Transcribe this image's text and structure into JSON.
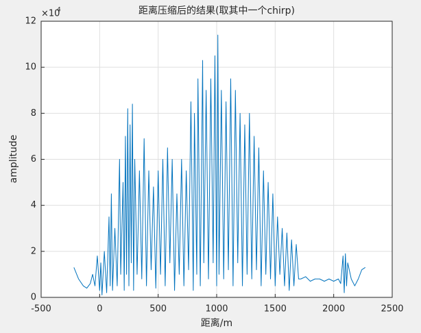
{
  "chart_data": {
    "type": "line",
    "title": "距离压缩后的结果(取其中一个chirp)",
    "x_label": "距离/m",
    "y_label": "amplitude",
    "y_multiplier": "×10",
    "y_multiplier_exponent": "4",
    "color": "#0072bd",
    "grid": true,
    "xlim": [
      -500,
      2500
    ],
    "xticks": [
      -500,
      0,
      500,
      1000,
      1500,
      2000,
      2500
    ],
    "ylim": [
      0,
      12
    ],
    "yticks": [
      0,
      2,
      4,
      6,
      8,
      10,
      12
    ],
    "x": [
      -220,
      -180,
      -140,
      -110,
      -80,
      -60,
      -40,
      -20,
      0,
      10,
      20,
      40,
      60,
      80,
      90,
      100,
      110,
      130,
      150,
      170,
      180,
      200,
      210,
      220,
      230,
      240,
      250,
      260,
      270,
      280,
      290,
      300,
      320,
      340,
      360,
      380,
      400,
      420,
      440,
      460,
      480,
      500,
      520,
      540,
      560,
      580,
      600,
      620,
      640,
      660,
      680,
      700,
      720,
      740,
      760,
      780,
      800,
      810,
      830,
      840,
      860,
      880,
      890,
      910,
      930,
      950,
      970,
      985,
      1000,
      1010,
      1020,
      1040,
      1060,
      1080,
      1100,
      1120,
      1140,
      1160,
      1180,
      1200,
      1220,
      1240,
      1260,
      1280,
      1300,
      1320,
      1340,
      1360,
      1380,
      1400,
      1420,
      1440,
      1460,
      1480,
      1500,
      1520,
      1540,
      1560,
      1580,
      1600,
      1620,
      1640,
      1660,
      1680,
      1700,
      1720,
      1760,
      1800,
      1840,
      1880,
      1920,
      1960,
      2000,
      2040,
      2060,
      2080,
      2090,
      2100,
      2110,
      2120,
      2150,
      2180,
      2210,
      2240,
      2270
    ],
    "values": [
      1.3,
      0.8,
      0.5,
      0.4,
      0.6,
      1.0,
      0.5,
      1.8,
      0.3,
      1.5,
      0.1,
      2.0,
      0.2,
      3.5,
      0.5,
      4.5,
      0.3,
      3.0,
      0.5,
      6.0,
      1.0,
      5.0,
      0.3,
      7.0,
      1.0,
      8.2,
      0.5,
      7.5,
      1.5,
      8.4,
      0.3,
      6.0,
      1.0,
      5.5,
      0.8,
      6.9,
      0.5,
      5.5,
      1.2,
      4.8,
      0.4,
      5.5,
      1.0,
      6.0,
      0.5,
      6.5,
      1.5,
      6.0,
      0.3,
      4.5,
      1.0,
      6.0,
      0.5,
      5.5,
      1.2,
      8.5,
      0.3,
      8.0,
      1.0,
      9.5,
      0.5,
      10.3,
      1.5,
      9.0,
      0.8,
      9.5,
      1.5,
      10.5,
      0.5,
      11.4,
      1.0,
      9.0,
      0.8,
      8.5,
      1.2,
      9.5,
      0.5,
      9.0,
      1.5,
      8.0,
      0.5,
      7.5,
      1.0,
      8.0,
      0.8,
      7.0,
      1.2,
      6.5,
      0.5,
      5.5,
      1.0,
      5.0,
      0.8,
      4.5,
      0.5,
      3.5,
      1.0,
      3.0,
      0.5,
      2.8,
      0.3,
      2.5,
      0.5,
      2.3,
      0.8,
      0.8,
      0.9,
      0.7,
      0.8,
      0.8,
      0.7,
      0.8,
      0.7,
      0.8,
      0.6,
      1.8,
      0.2,
      1.9,
      0.5,
      1.5,
      0.8,
      0.5,
      0.8,
      1.2,
      1.3
    ]
  }
}
